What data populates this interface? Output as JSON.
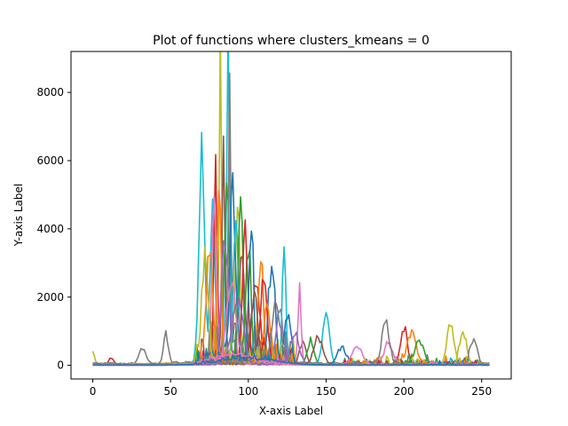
{
  "chart_data": {
    "type": "line",
    "title": "Plot of functions where clusters_kmeans = 0",
    "xlabel": "X-axis Label",
    "ylabel": "Y-axis Label",
    "xlim": [
      -14,
      269
    ],
    "ylim": [
      -400,
      9200
    ],
    "xticks": [
      0,
      50,
      100,
      150,
      200,
      250
    ],
    "yticks": [
      0,
      2000,
      4000,
      6000,
      8000
    ],
    "xtick_labels": [
      "0",
      "50",
      "100",
      "150",
      "200",
      "250"
    ],
    "ytick_labels": [
      "0",
      "2000",
      "4000",
      "6000",
      "8000"
    ],
    "grid": false,
    "legend": "none",
    "n_points": 256,
    "note_series": "Many overlapping curves; each series is described by its dominant peak positions and heights (data units).",
    "series": [
      {
        "color": "#17becf",
        "base": 40,
        "peaks": [
          [
            70,
            6000,
            2.5
          ],
          [
            87,
            8700,
            1.6
          ],
          [
            150,
            1500,
            3
          ],
          [
            77,
            5000,
            2
          ]
        ]
      },
      {
        "color": "#bcbd22",
        "base": 50,
        "peaks": [
          [
            82,
            7800,
            1.2
          ],
          [
            0,
            400,
            1.5
          ],
          [
            230,
            1200,
            3
          ],
          [
            93,
            4300,
            2
          ]
        ]
      },
      {
        "color": "#8c564b",
        "base": 35,
        "peaks": [
          [
            84,
            5900,
            1.5
          ],
          [
            96,
            3200,
            2.5
          ],
          [
            135,
            600,
            3
          ]
        ]
      },
      {
        "color": "#2ca02c",
        "base": 30,
        "peaks": [
          [
            86,
            5500,
            2
          ],
          [
            100,
            3500,
            2.5
          ],
          [
            140,
            700,
            3
          ]
        ]
      },
      {
        "color": "#d62728",
        "base": 30,
        "peaks": [
          [
            79,
            5300,
            1.5
          ],
          [
            105,
            2600,
            3
          ],
          [
            200,
            1100,
            3
          ],
          [
            12,
            200,
            2
          ]
        ]
      },
      {
        "color": "#ff7f0e",
        "base": 40,
        "peaks": [
          [
            81,
            5700,
            1.5
          ],
          [
            108,
            3000,
            2.5
          ],
          [
            205,
            900,
            4
          ]
        ]
      },
      {
        "color": "#e377c2",
        "base": 20,
        "peaks": [
          [
            78,
            4900,
            2
          ],
          [
            133,
            2100,
            1.5
          ],
          [
            190,
            600,
            4
          ]
        ]
      },
      {
        "color": "#7f7f7f",
        "base": 60,
        "peaks": [
          [
            88,
            7000,
            1.2
          ],
          [
            32,
            450,
            3
          ],
          [
            47,
            900,
            2
          ],
          [
            188,
            1300,
            3
          ]
        ]
      },
      {
        "color": "#1f77b4",
        "base": 25,
        "peaks": [
          [
            90,
            5000,
            2.5
          ],
          [
            115,
            2800,
            3
          ],
          [
            160,
            500,
            4
          ]
        ]
      },
      {
        "color": "#9467bd",
        "base": 15,
        "peaks": [
          [
            85,
            3800,
            3
          ],
          [
            120,
            1800,
            3
          ]
        ]
      },
      {
        "color": "#17becf",
        "base": 20,
        "peaks": [
          [
            92,
            4600,
            2
          ],
          [
            123,
            3600,
            1.5
          ]
        ]
      },
      {
        "color": "#2ca02c",
        "base": 25,
        "peaks": [
          [
            95,
            4800,
            2
          ],
          [
            210,
            700,
            4
          ]
        ]
      },
      {
        "color": "#d62728",
        "base": 20,
        "peaks": [
          [
            98,
            3600,
            2.5
          ],
          [
            110,
            2400,
            3
          ]
        ]
      },
      {
        "color": "#1f77b4",
        "base": 20,
        "peaks": [
          [
            102,
            4000,
            2
          ],
          [
            125,
            1500,
            3
          ]
        ]
      },
      {
        "color": "#bcbd22",
        "base": 30,
        "peaks": [
          [
            72,
            2800,
            3
          ],
          [
            238,
            900,
            3
          ]
        ]
      },
      {
        "color": "#ff7f0e",
        "base": 20,
        "peaks": [
          [
            75,
            3200,
            3
          ],
          [
            112,
            1600,
            3
          ]
        ]
      },
      {
        "color": "#8c564b",
        "base": 20,
        "peaks": [
          [
            104,
            2200,
            3
          ],
          [
            145,
            800,
            4
          ]
        ]
      },
      {
        "color": "#e377c2",
        "base": 15,
        "peaks": [
          [
            89,
            2600,
            4
          ],
          [
            170,
            500,
            5
          ]
        ]
      },
      {
        "color": "#7f7f7f",
        "base": 20,
        "peaks": [
          [
            118,
            1700,
            4
          ],
          [
            245,
            800,
            3
          ]
        ]
      },
      {
        "color": "#9467bd",
        "base": 10,
        "peaks": [
          [
            93,
            1800,
            5
          ],
          [
            130,
            900,
            4
          ]
        ]
      },
      {
        "color": "#e377c2",
        "base": 5,
        "peaks": [
          [
            90,
            300,
            20
          ]
        ]
      },
      {
        "color": "#1f77b4",
        "base": 5,
        "peaks": [
          [
            100,
            200,
            25
          ]
        ]
      }
    ]
  }
}
